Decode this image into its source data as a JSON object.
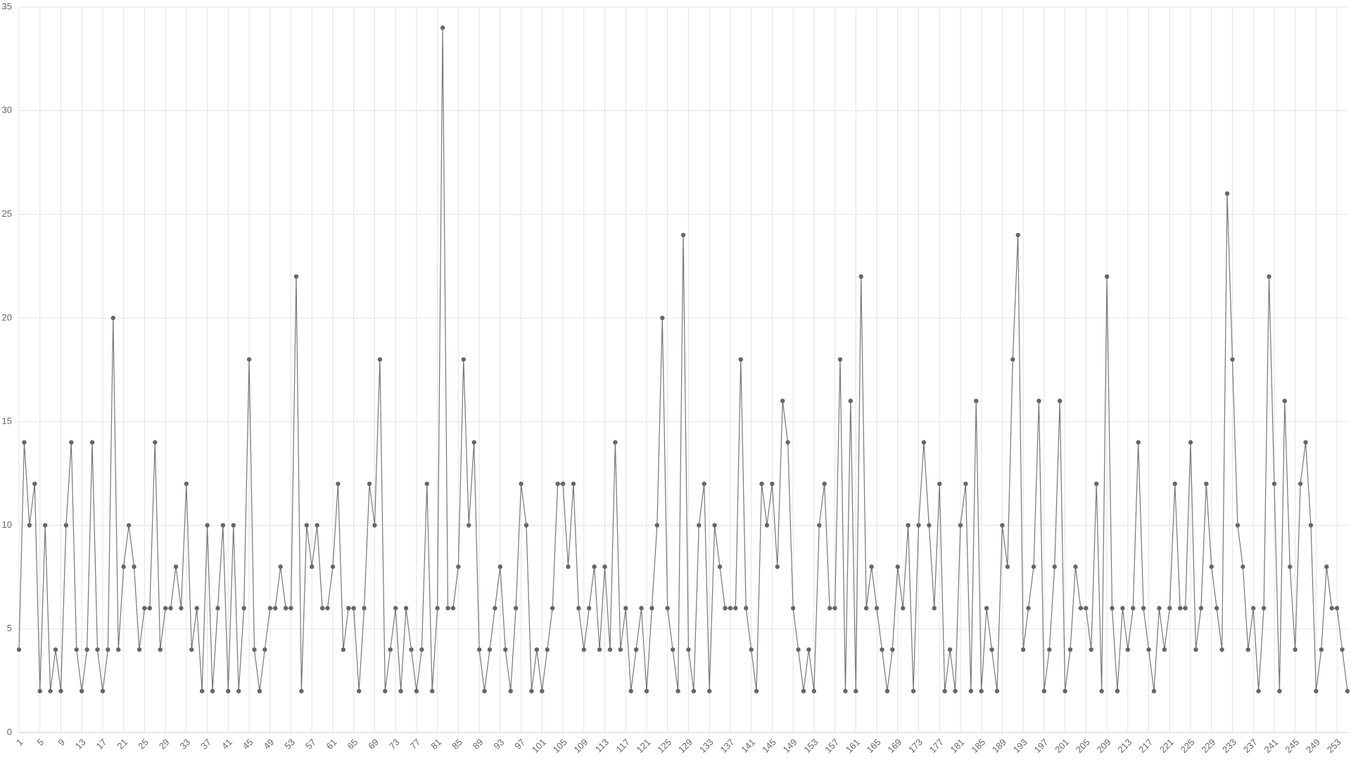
{
  "chart_data": {
    "type": "line",
    "categories": [
      "1",
      null,
      null,
      null,
      "5",
      null,
      null,
      null,
      "9",
      null,
      null,
      null,
      "13",
      null,
      null,
      null,
      "17",
      null,
      null,
      null,
      "21",
      null,
      null,
      null,
      "25",
      null,
      null,
      null,
      "29",
      null,
      null,
      null,
      "33",
      null,
      null,
      null,
      "37",
      null,
      null,
      null,
      "41",
      null,
      null,
      null,
      "45",
      null,
      null,
      null,
      "49",
      null,
      null,
      null,
      "53",
      null,
      null,
      null,
      "57",
      null,
      null,
      null,
      "61",
      null,
      null,
      null,
      "65",
      null,
      null,
      null,
      "69",
      null,
      null,
      null,
      "73",
      null,
      null,
      null,
      "77",
      null,
      null,
      null,
      "81",
      null,
      null,
      null,
      "85",
      null,
      null,
      null,
      "89",
      null,
      null,
      null,
      "93",
      null,
      null,
      null,
      "97",
      null,
      null,
      null,
      "101",
      null,
      null,
      null,
      "105",
      null,
      null,
      null,
      "109",
      null,
      null,
      null,
      "113",
      null,
      null,
      null,
      "117",
      null,
      null,
      null,
      "121",
      null,
      null,
      null,
      "125",
      null,
      null,
      null,
      "129",
      null,
      null,
      null,
      "133",
      null,
      null,
      null,
      "137",
      null,
      null,
      null,
      "141",
      null,
      null,
      null,
      "145",
      null,
      null,
      null,
      "149",
      null,
      null,
      null,
      "153",
      null,
      null,
      null,
      "157",
      null,
      null,
      null,
      "161",
      null,
      null,
      null,
      "165",
      null,
      null,
      null,
      "169",
      null,
      null,
      null,
      "173",
      null,
      null,
      null,
      "177",
      null,
      null,
      null,
      "181",
      null,
      null,
      null,
      "185",
      null,
      null,
      null,
      "189",
      null,
      null,
      null,
      "193",
      null,
      null,
      null,
      "197",
      null,
      null,
      null,
      "201",
      null,
      null,
      null,
      "205",
      null,
      null,
      null,
      "209",
      null,
      null,
      null,
      "213",
      null,
      null,
      null,
      "217",
      null,
      null,
      null,
      "221",
      null,
      null,
      null,
      "225",
      null,
      null,
      null,
      "229",
      null,
      null,
      null,
      "233",
      null,
      null,
      null,
      "237",
      null,
      null,
      null,
      "241",
      null,
      null,
      null,
      "245",
      null,
      null,
      null,
      "249",
      null,
      null,
      null,
      "253",
      null,
      null
    ],
    "values": [
      4,
      14,
      10,
      12,
      2,
      10,
      2,
      4,
      2,
      10,
      14,
      4,
      2,
      4,
      14,
      4,
      2,
      4,
      20,
      4,
      8,
      10,
      8,
      4,
      6,
      6,
      14,
      4,
      6,
      6,
      8,
      6,
      12,
      4,
      6,
      2,
      10,
      2,
      6,
      10,
      2,
      10,
      2,
      6,
      18,
      4,
      2,
      4,
      6,
      6,
      8,
      6,
      6,
      22,
      2,
      10,
      8,
      10,
      6,
      6,
      8,
      12,
      4,
      6,
      6,
      2,
      6,
      12,
      10,
      18,
      2,
      4,
      6,
      2,
      6,
      4,
      2,
      4,
      12,
      2,
      6,
      34,
      6,
      6,
      8,
      18,
      10,
      14,
      4,
      2,
      4,
      6,
      8,
      4,
      2,
      6,
      12,
      10,
      2,
      4,
      2,
      4,
      6,
      12,
      12,
      8,
      12,
      6,
      4,
      6,
      8,
      4,
      8,
      4,
      14,
      4,
      6,
      2,
      4,
      6,
      2,
      6,
      10,
      20,
      6,
      4,
      2,
      24,
      4,
      2,
      10,
      12,
      2,
      10,
      8,
      6,
      6,
      6,
      18,
      6,
      4,
      2,
      12,
      10,
      12,
      8,
      16,
      14,
      6,
      4,
      2,
      4,
      2,
      10,
      12,
      6,
      6,
      18,
      2,
      16,
      2,
      22,
      6,
      8,
      6,
      4,
      2,
      4,
      8,
      6,
      10,
      2,
      10,
      14,
      10,
      6,
      12,
      2,
      4,
      2,
      10,
      12,
      2,
      16,
      2,
      6,
      4,
      2,
      10,
      8,
      18,
      24,
      4,
      6,
      8,
      16,
      2,
      4,
      8,
      16,
      2,
      4,
      8,
      6,
      6,
      4,
      12,
      2,
      22,
      6,
      2,
      6,
      4,
      6,
      14,
      6,
      4,
      2,
      6,
      4,
      6,
      12,
      6,
      6,
      14,
      4,
      6,
      12,
      8,
      6,
      4,
      26,
      18,
      10,
      8,
      4,
      6,
      2,
      6,
      22,
      12,
      2,
      16,
      8,
      4,
      12,
      14,
      10,
      2,
      4,
      8,
      6,
      6,
      4,
      2
    ],
    "color": "#777777",
    "marker_color": "#666666",
    "ylim": [
      0,
      35
    ],
    "yticks": [
      0,
      5,
      10,
      15,
      20,
      25,
      30,
      35
    ],
    "grid": true
  }
}
